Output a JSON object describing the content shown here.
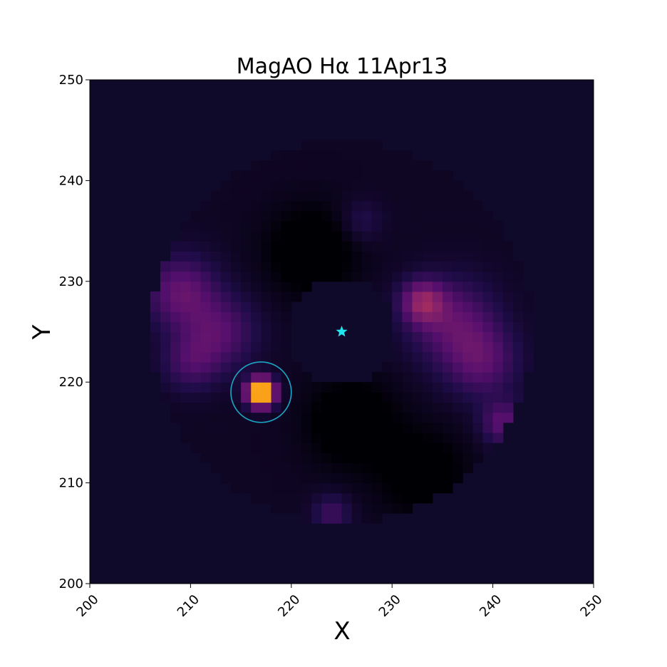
{
  "chart_data": {
    "type": "heatmap",
    "title": "MagAO Hα 11Apr13",
    "xlabel": "X",
    "ylabel": "Y",
    "xlim": [
      200,
      250
    ],
    "ylim": [
      200,
      250
    ],
    "xticks": [
      200,
      210,
      220,
      230,
      240,
      250
    ],
    "yticks": [
      200,
      210,
      220,
      230,
      240,
      250
    ],
    "colormap": "inferno",
    "background_value_color": "#100a2a",
    "star": {
      "x": 225,
      "y": 225,
      "color": "#22e5f0",
      "marker": "star"
    },
    "circle": {
      "x": 217,
      "y": 219,
      "radius": 3,
      "color": "#1aa7c4"
    },
    "annulus": {
      "cx": 225,
      "cy": 225,
      "inner_radius": 5.5,
      "outer_radius": 19
    },
    "features": [
      {
        "x": 217,
        "y": 219,
        "amplitude": 1.0,
        "sigma": 0.9
      },
      {
        "x": 209,
        "y": 229,
        "amplitude": 0.22,
        "sigma": 2.5
      },
      {
        "x": 213,
        "y": 225,
        "amplitude": 0.18,
        "sigma": 2.5
      },
      {
        "x": 210,
        "y": 222,
        "amplitude": 0.15,
        "sigma": 2.0
      },
      {
        "x": 233,
        "y": 228,
        "amplitude": 0.28,
        "sigma": 1.5
      },
      {
        "x": 236,
        "y": 226,
        "amplitude": 0.2,
        "sigma": 3.0
      },
      {
        "x": 239,
        "y": 222,
        "amplitude": 0.18,
        "sigma": 2.5
      },
      {
        "x": 241,
        "y": 216,
        "amplitude": 0.2,
        "sigma": 1.5
      },
      {
        "x": 224,
        "y": 207,
        "amplitude": 0.14,
        "sigma": 1.3
      },
      {
        "x": 227,
        "y": 236,
        "amplitude": 0.08,
        "sigma": 1.5
      },
      {
        "x": 222,
        "y": 233,
        "amplitude": -0.12,
        "sigma": 3.0
      },
      {
        "x": 226,
        "y": 216,
        "amplitude": -0.12,
        "sigma": 3.0
      },
      {
        "x": 233,
        "y": 211,
        "amplitude": -0.1,
        "sigma": 3.0
      }
    ]
  }
}
